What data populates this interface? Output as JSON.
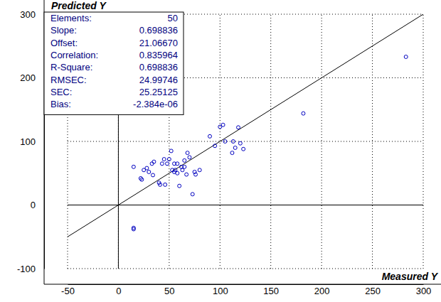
{
  "chart_data": {
    "type": "scatter",
    "x_label": "Measured Y",
    "y_label": "Predicted Y",
    "x": [
      15,
      15,
      15,
      22,
      23,
      25,
      28,
      30,
      33,
      35,
      34,
      40,
      41,
      43,
      45,
      46,
      48,
      50,
      52,
      53,
      55,
      55,
      56,
      58,
      58,
      60,
      62,
      63,
      65,
      65,
      67,
      68,
      70,
      73,
      75,
      76,
      80,
      90,
      95,
      100,
      103,
      105,
      112,
      113,
      115,
      118,
      120,
      123,
      182,
      283
    ],
    "values": [
      60,
      -36,
      -38,
      42,
      40,
      55,
      58,
      52,
      65,
      68,
      47,
      35,
      32,
      65,
      72,
      32,
      65,
      72,
      85,
      55,
      65,
      52,
      55,
      50,
      65,
      30,
      60,
      55,
      70,
      60,
      48,
      82,
      75,
      17,
      52,
      48,
      55,
      108,
      93,
      123,
      126,
      100,
      82,
      100,
      90,
      122,
      97,
      88,
      144,
      233
    ],
    "xlim": [
      -50,
      300
    ],
    "ylim": [
      -100,
      300
    ],
    "xticks": [
      -50,
      0,
      50,
      100,
      150,
      200,
      250,
      300
    ],
    "yticks": [
      -100,
      0,
      100,
      200,
      300
    ],
    "grid": true,
    "color": "#0000c0",
    "marker": "circle",
    "reference_line": {
      "x": [
        -50,
        300
      ],
      "y": [
        -50,
        300
      ]
    },
    "stats": [
      {
        "label": "Elements:",
        "value": "50"
      },
      {
        "label": "Slope:",
        "value": "0.698836"
      },
      {
        "label": "Offset:",
        "value": "21.06670"
      },
      {
        "label": "Correlation:",
        "value": "0.835964"
      },
      {
        "label": "R-Square:",
        "value": "0.698836"
      },
      {
        "label": "RMSEC:",
        "value": "24.99746"
      },
      {
        "label": "SEC:",
        "value": "25.25125"
      },
      {
        "label": "Bias:",
        "value": "-2.384e-06"
      }
    ]
  }
}
